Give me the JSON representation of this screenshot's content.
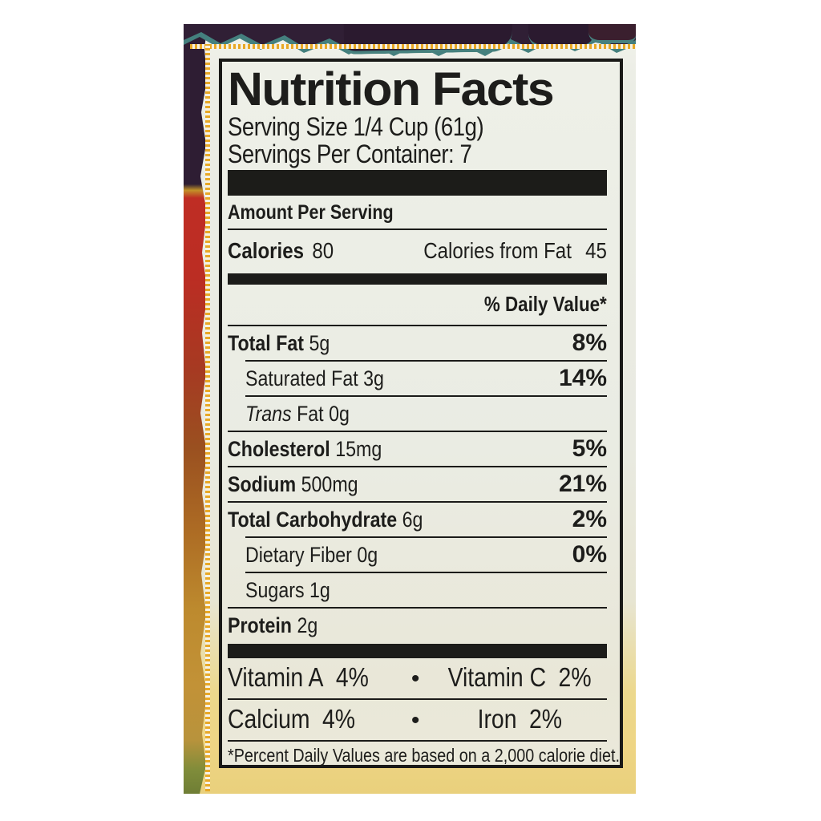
{
  "colors": {
    "paper": "#eaece3",
    "paper_gold_bottom": "#eed584",
    "panel_border": "#191917",
    "text": "#1d1d1b",
    "dotted_frame_yellow": "#e8a826",
    "package_strip_purple": "#2e1d33",
    "package_strip_red": "#bf2d24",
    "package_strip_gold": "#c29237",
    "torn_edge_teal": "#44807e"
  },
  "panel": {
    "title": "Nutrition Facts",
    "serving_size": "Serving Size 1/4 Cup (61g)",
    "servings_per_container": "Servings Per Container: 7",
    "amount_per_serving": "Amount Per Serving",
    "calories_label": "Calories",
    "calories_value": "80",
    "calories_from_fat_label": "Calories from Fat",
    "calories_from_fat_value": "45",
    "daily_value_header": "% Daily Value*",
    "nutrients": [
      {
        "it": "",
        "label": "Total Fat",
        "text": " 5g",
        "pct": "8%"
      },
      {
        "it": "",
        "label": "",
        "text": "Saturated Fat 3g",
        "pct": "14%"
      },
      {
        "it": "Trans",
        "label": "",
        "text": " Fat 0g",
        "pct": ""
      },
      {
        "it": "",
        "label": "Cholesterol",
        "text": " 15mg",
        "pct": "5%"
      },
      {
        "it": "",
        "label": "Sodium",
        "text": " 500mg",
        "pct": "21%"
      },
      {
        "it": "",
        "label": "Total Carbohydrate",
        "text": " 6g",
        "pct": "2%"
      },
      {
        "it": "",
        "label": "",
        "text": "Dietary Fiber 0g",
        "pct": "0%"
      },
      {
        "it": "",
        "label": "",
        "text": "Sugars 1g",
        "pct": ""
      },
      {
        "it": "",
        "label": "Protein",
        "text": " 2g",
        "pct": ""
      }
    ],
    "bullet": "•",
    "vitamins": [
      {
        "name": "Vitamin A",
        "value": "4%",
        "name2": "Vitamin C",
        "value2": "2%"
      },
      {
        "name": "Calcium",
        "value": "4%",
        "name2": "Iron",
        "value2": "2%"
      }
    ],
    "footnote": "*Percent Daily Values are based on a 2,000 calorie diet."
  }
}
